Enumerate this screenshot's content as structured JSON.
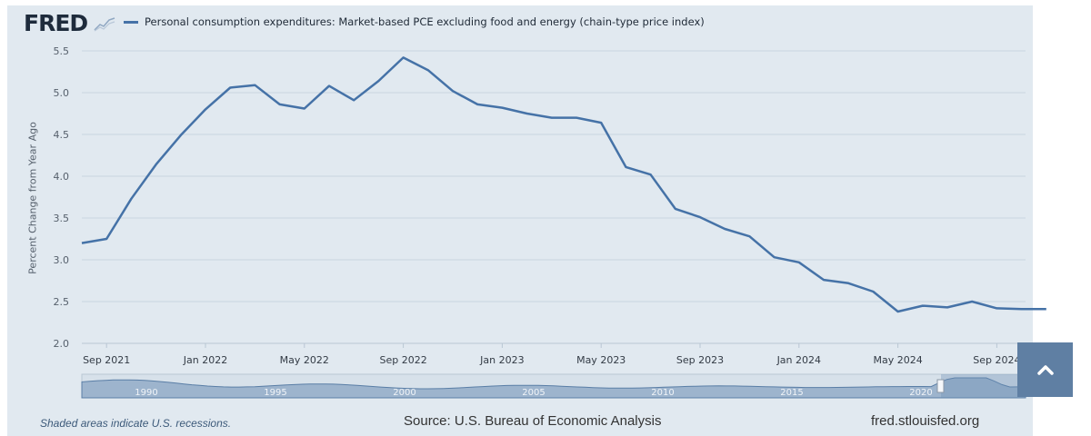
{
  "header": {
    "logo_text": "FRED",
    "legend_label": "Personal consumption expenditures: Market-based PCE excluding food and energy (chain-type price index)"
  },
  "footer": {
    "recession_note": "Shaded areas indicate U.S. recessions.",
    "source": "Source: U.S. Bureau of Economic Analysis",
    "url": "fred.stlouisfed.org"
  },
  "navigator": {
    "year_labels": [
      "1990",
      "1995",
      "2000",
      "2005",
      "2010",
      "2015",
      "2020"
    ]
  },
  "icons": {
    "scroll_top": "chevron-up-icon",
    "logo_graph": "line-graph-icon"
  },
  "colors": {
    "series": "#4572a7",
    "background": "#e1e9f0",
    "scroll_button": "#5f7fa3"
  },
  "chart_data": {
    "type": "line",
    "ylabel": "Percent Change from Year Ago",
    "ylim": [
      2.0,
      5.5
    ],
    "yticks": [
      "2.0",
      "2.5",
      "3.0",
      "3.5",
      "4.0",
      "4.5",
      "5.0",
      "5.5"
    ],
    "xticks": [
      "Sep 2021",
      "Jan 2022",
      "May 2022",
      "Sep 2022",
      "Jan 2023",
      "May 2023",
      "Sep 2023",
      "Jan 2024",
      "May 2024",
      "Sep 2024"
    ],
    "grid": true,
    "legend": "top-left",
    "series": [
      {
        "name": "Personal consumption expenditures: Market-based PCE excluding food and energy (chain-type price index)",
        "x": [
          "2021-08",
          "2021-09",
          "2021-10",
          "2021-11",
          "2021-12",
          "2022-01",
          "2022-02",
          "2022-03",
          "2022-04",
          "2022-05",
          "2022-06",
          "2022-07",
          "2022-08",
          "2022-09",
          "2022-10",
          "2022-11",
          "2022-12",
          "2023-01",
          "2023-02",
          "2023-03",
          "2023-04",
          "2023-05",
          "2023-06",
          "2023-07",
          "2023-08",
          "2023-09",
          "2023-10",
          "2023-11",
          "2023-12",
          "2024-01",
          "2024-02",
          "2024-03",
          "2024-04",
          "2024-05",
          "2024-06",
          "2024-07",
          "2024-08",
          "2024-09",
          "2024-10",
          "2024-11"
        ],
        "values": [
          3.2,
          3.25,
          3.73,
          4.14,
          4.49,
          4.8,
          5.06,
          5.09,
          4.86,
          4.81,
          5.08,
          4.91,
          5.14,
          5.42,
          5.27,
          5.02,
          4.86,
          4.82,
          4.75,
          4.7,
          4.7,
          4.64,
          4.11,
          4.02,
          3.61,
          3.51,
          3.37,
          3.28,
          3.03,
          2.97,
          2.76,
          2.72,
          2.62,
          2.38,
          2.45,
          2.43,
          2.5,
          2.42,
          2.41,
          2.41
        ]
      }
    ]
  }
}
